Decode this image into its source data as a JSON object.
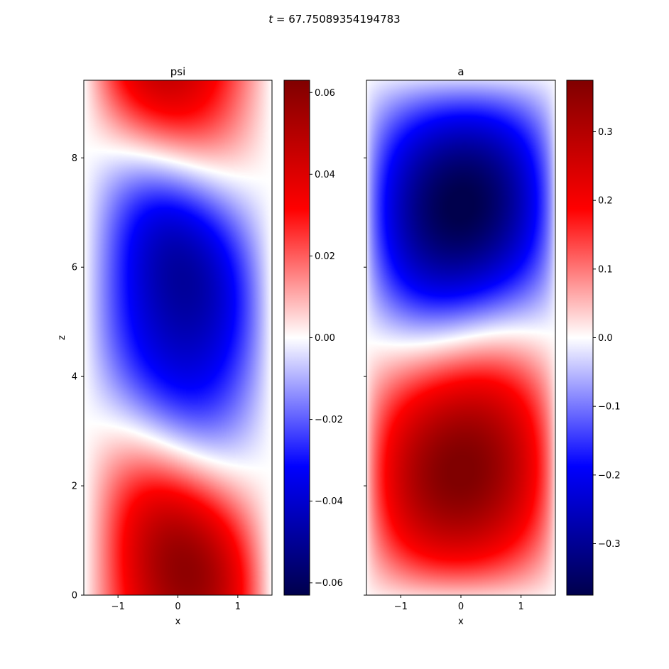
{
  "figure": {
    "suptitle_italic": "t",
    "suptitle_rest": " = 67.75089354194783"
  },
  "colors": {
    "cmap_seismic": [
      "#00004c",
      "#0000ff",
      "#ffffff",
      "#ff0000",
      "#800000"
    ]
  },
  "chart_data": [
    {
      "type": "heatmap",
      "title": "psi",
      "xlabel": "x",
      "ylabel": "z",
      "xlim": [
        -1.5708,
        1.5708
      ],
      "ylim": [
        0,
        9.42
      ],
      "xticks": [
        -1,
        0,
        1
      ],
      "xtick_labels": [
        "−1",
        "0",
        "1"
      ],
      "yticks": [
        0,
        2,
        4,
        6,
        8
      ],
      "ytick_labels": [
        "0",
        "2",
        "4",
        "6",
        "8"
      ],
      "colorbar": {
        "vmin": -0.063,
        "vmax": 0.063,
        "ticks": [
          -0.06,
          -0.04,
          -0.02,
          0.0,
          0.02,
          0.04,
          0.06
        ],
        "tick_labels": [
          "−0.06",
          "−0.04",
          "−0.02",
          "0.00",
          "0.02",
          "0.04",
          "0.06"
        ]
      },
      "field_description": "three lobes: positive near z≈0.9 (peak x≈0.8), negative centered z≈4.8 tilted, positive near z≈8.7 (peak x≈-0.8)",
      "zero_contours_z": [
        2.45,
        7.15
      ],
      "extrema": [
        {
          "x": 0.8,
          "z": 0.8,
          "value": 0.063
        },
        {
          "x": 0.8,
          "z": 4.0,
          "value": -0.063
        },
        {
          "x": -0.8,
          "z": 5.4,
          "value": -0.058
        },
        {
          "x": -0.7,
          "z": 8.7,
          "value": 0.063
        }
      ]
    },
    {
      "type": "heatmap",
      "title": "a",
      "xlabel": "x",
      "ylabel": "",
      "xlim": [
        -1.5708,
        1.5708
      ],
      "ylim": [
        0,
        9.42
      ],
      "xticks": [
        -1,
        0,
        1
      ],
      "xtick_labels": [
        "−1",
        "0",
        "1"
      ],
      "yticks": [
        0,
        2,
        4,
        6,
        8
      ],
      "colorbar": {
        "vmin": -0.375,
        "vmax": 0.375,
        "ticks": [
          -0.3,
          -0.2,
          -0.1,
          0.0,
          0.1,
          0.2,
          0.3
        ],
        "tick_labels": [
          "−0.3",
          "−0.2",
          "−0.1",
          "0.0",
          "0.1",
          "0.2",
          "0.3"
        ]
      },
      "field_description": "positive lobe centered z≈2.5 (x≈-0.3), negative lobe centered z≈6.9 (x≈0.3), zero line near z≈4.8",
      "zero_contours_z": [
        0.0,
        4.8,
        9.42
      ],
      "extrema": [
        {
          "x": -0.3,
          "z": 2.5,
          "value": 0.375
        },
        {
          "x": 0.3,
          "z": 6.9,
          "value": -0.375
        }
      ]
    }
  ]
}
